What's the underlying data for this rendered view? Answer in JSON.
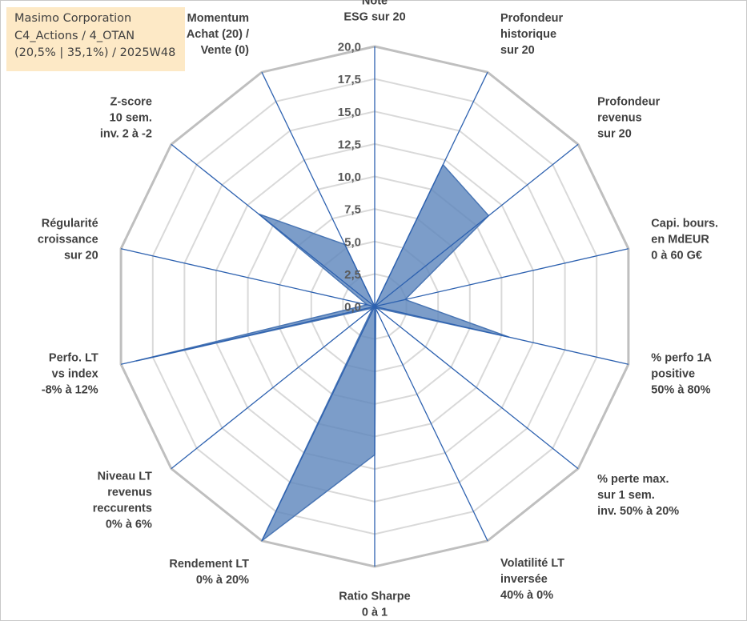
{
  "info": {
    "company": "Masimo Corporation",
    "category": "C4_Actions / 4_OTAN",
    "stats": "(20,5% | 35,1%) / 2025W48"
  },
  "chart_data": {
    "type": "radar",
    "title": "",
    "r_range": [
      0,
      20
    ],
    "r_ticks": [
      "0,0",
      "2,5",
      "5,0",
      "7,5",
      "10,0",
      "12,5",
      "15,0",
      "17,5",
      "20,0"
    ],
    "grid": true,
    "axes": [
      [
        "Note",
        "ESG sur 20"
      ],
      [
        "Profondeur",
        "historique",
        "sur 20"
      ],
      [
        "Profondeur",
        "revenus",
        "sur 20"
      ],
      [
        "Capi. bours.",
        "en MdEUR",
        "0 à 60 G€"
      ],
      [
        "% perfo 1A",
        "positive",
        "50% à 80%"
      ],
      [
        "% perte max.",
        "sur 1 sem.",
        "inv. 50% à 20%"
      ],
      [
        "Volatilité LT",
        "inversée",
        "40% à 0%"
      ],
      [
        "Ratio Sharpe",
        "0 à 1"
      ],
      [
        "Rendement LT",
        "0% à 20%"
      ],
      [
        "Niveau LT",
        "revenus",
        "reccurents",
        "0% à 6%"
      ],
      [
        "Perfo. LT",
        "vs index",
        "-8% à 12%"
      ],
      [
        "Régularité",
        "croissance",
        "sur 20"
      ],
      [
        "Z-score",
        "10 sem.",
        "inv. 2 à -2"
      ],
      [
        "Momentum",
        "Achat (20) /",
        "Vente (0)"
      ]
    ],
    "series": [
      {
        "values": [
          0,
          12.1,
          11.2,
          2.4,
          10.6,
          0.2,
          0.2,
          11.4,
          20,
          0.2,
          18.8,
          0.6,
          11.4,
          5.3
        ]
      }
    ],
    "colors": {
      "fill": "#5b84bc",
      "fill_opacity": 0.8,
      "series_line": "#4a76b4",
      "spoke": "#2e62b0",
      "outer_ring": "#bfbfbf",
      "inner_ring": "#d9d9d9"
    }
  }
}
